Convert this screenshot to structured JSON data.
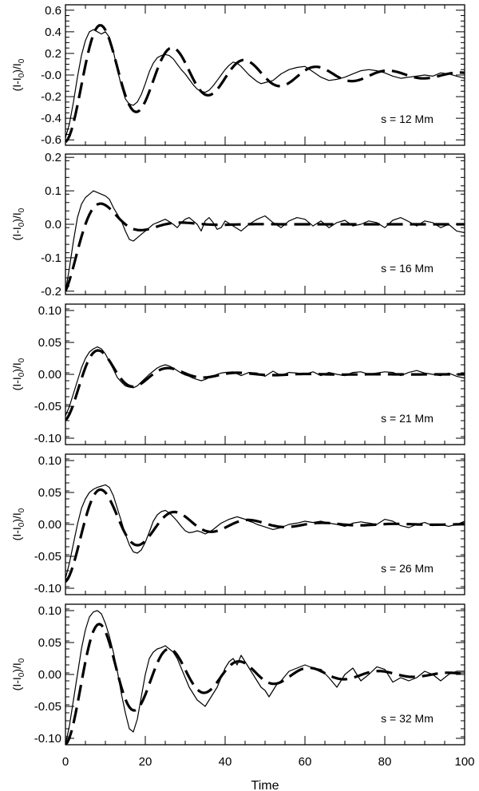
{
  "chart_data": {
    "type": "line",
    "shared_x": {
      "label": "Time",
      "range": [
        0,
        100
      ],
      "ticks": [
        0,
        20,
        40,
        60,
        80,
        100
      ],
      "tick_labels": [
        "0",
        "20",
        "40",
        "60",
        "80",
        "100"
      ]
    },
    "panels": [
      {
        "annotation": "s = 12 Mm",
        "ylabel": {
          "pre": "(I-I",
          "sub1": "0",
          "mid": ")/I",
          "sub2": "0"
        },
        "ylim": [
          -0.65,
          0.65
        ],
        "yticks": [
          -0.6,
          -0.4,
          -0.2,
          0.0,
          0.2,
          0.4,
          0.6
        ],
        "ytick_labels": [
          "-0.6",
          "-0.4",
          "-0.2",
          "-0.0",
          "0.2",
          "0.4",
          "0.6"
        ],
        "series": [
          {
            "style": "solid",
            "x": [
              0,
              1,
              2,
              3,
              4,
              5,
              6,
              7,
              8,
              9,
              10,
              11,
              12,
              13,
              14,
              15,
              16,
              17,
              18,
              19,
              20,
              21,
              22,
              23,
              24,
              25,
              26,
              27,
              28,
              29,
              30,
              31,
              32,
              33,
              34,
              35,
              36,
              37,
              38,
              39,
              40,
              41,
              42,
              43,
              44,
              45,
              46,
              47,
              48,
              49,
              50,
              52,
              54,
              56,
              58,
              60,
              62,
              64,
              66,
              68,
              70,
              72,
              74,
              76,
              78,
              80,
              82,
              84,
              86,
              88,
              90,
              92,
              94,
              96,
              98,
              100
            ],
            "y": [
              -0.58,
              -0.45,
              -0.25,
              -0.02,
              0.18,
              0.32,
              0.4,
              0.42,
              0.4,
              0.38,
              0.4,
              0.35,
              0.22,
              0.05,
              -0.1,
              -0.22,
              -0.27,
              -0.28,
              -0.25,
              -0.18,
              -0.08,
              0.03,
              0.11,
              0.16,
              0.18,
              0.19,
              0.18,
              0.15,
              0.1,
              0.05,
              0.01,
              -0.04,
              -0.09,
              -0.13,
              -0.15,
              -0.16,
              -0.14,
              -0.1,
              -0.05,
              0.0,
              0.05,
              0.09,
              0.12,
              0.11,
              0.08,
              0.04,
              0.0,
              -0.03,
              -0.06,
              -0.08,
              -0.07,
              -0.05,
              0.01,
              0.05,
              0.07,
              0.08,
              0.03,
              -0.02,
              -0.05,
              -0.04,
              -0.02,
              0.01,
              0.04,
              0.05,
              0.04,
              0.02,
              -0.01,
              -0.03,
              -0.02,
              -0.01,
              0.0,
              -0.01,
              0.02,
              0.01,
              -0.01,
              -0.03
            ]
          },
          {
            "style": "dashed",
            "fn": {
              "A": 0.62,
              "t0": 0,
              "tau": 30,
              "P": 18,
              "c": 0
            }
          }
        ]
      },
      {
        "annotation": "s = 16 Mm",
        "ylabel": {
          "pre": "(I-I",
          "sub1": "0",
          "mid": ")/I",
          "sub2": "0"
        },
        "ylim": [
          -0.21,
          0.21
        ],
        "yticks": [
          -0.2,
          -0.1,
          0.0,
          0.1,
          0.2
        ],
        "ytick_labels": [
          "-0.2",
          "-0.1",
          "0.0",
          "0.1",
          "0.2"
        ],
        "series": [
          {
            "style": "solid",
            "x": [
              0,
              1,
              2,
              3,
              4,
              5,
              6,
              7,
              8,
              9,
              10,
              11,
              12,
              13,
              14,
              15,
              16,
              17,
              18,
              19,
              20,
              21,
              22,
              23,
              24,
              25,
              26,
              27,
              28,
              29,
              30,
              31,
              32,
              33,
              34,
              35,
              36,
              37,
              38,
              39,
              40,
              42,
              44,
              46,
              48,
              50,
              52,
              54,
              56,
              58,
              60,
              62,
              64,
              66,
              68,
              70,
              72,
              74,
              76,
              78,
              80,
              82,
              84,
              86,
              88,
              90,
              92,
              94,
              96,
              98,
              100
            ],
            "y": [
              -0.2,
              -0.13,
              -0.05,
              0.02,
              0.06,
              0.08,
              0.09,
              0.1,
              0.095,
              0.09,
              0.085,
              0.075,
              0.05,
              0.03,
              0.01,
              -0.02,
              -0.045,
              -0.05,
              -0.04,
              -0.03,
              -0.02,
              -0.01,
              0.0,
              0.005,
              0.01,
              0.015,
              0.008,
              0.0,
              -0.01,
              0.005,
              0.015,
              0.02,
              0.01,
              0.0,
              -0.02,
              0.01,
              0.02,
              0.005,
              -0.015,
              -0.01,
              0.01,
              -0.005,
              -0.02,
              0.0,
              0.015,
              0.025,
              0.005,
              -0.01,
              0.01,
              0.02,
              0.015,
              -0.005,
              0.01,
              -0.01,
              0.005,
              0.012,
              -0.005,
              0.0,
              0.01,
              0.005,
              -0.01,
              0.012,
              0.02,
              0.008,
              -0.005,
              0.01,
              0.005,
              -0.01,
              0.0,
              -0.02,
              -0.025
            ]
          },
          {
            "style": "dashed",
            "fn": {
              "A": 0.2,
              "t0": 0,
              "tau": 8,
              "P": 20,
              "c": 0
            }
          }
        ]
      },
      {
        "annotation": "s = 21 Mm",
        "ylabel": {
          "pre": "(I-I",
          "sub1": "0",
          "mid": ")/I",
          "sub2": "0"
        },
        "ylim": [
          -0.11,
          0.11
        ],
        "yticks": [
          -0.1,
          -0.05,
          0.0,
          0.05,
          0.1
        ],
        "ytick_labels": [
          "-0.10",
          "-0.05",
          "0.00",
          "0.05",
          "0.10"
        ],
        "series": [
          {
            "style": "solid",
            "x": [
              0,
              1,
              2,
              3,
              4,
              5,
              6,
              7,
              8,
              9,
              10,
              11,
              12,
              13,
              14,
              15,
              16,
              17,
              18,
              19,
              20,
              21,
              22,
              23,
              24,
              25,
              26,
              27,
              28,
              29,
              30,
              31,
              32,
              33,
              34,
              35,
              36,
              37,
              38,
              39,
              40,
              42,
              44,
              46,
              48,
              50,
              52,
              54,
              56,
              58,
              60,
              62,
              64,
              66,
              68,
              70,
              72,
              74,
              76,
              78,
              80,
              82,
              84,
              86,
              88,
              90,
              92,
              94,
              96,
              98,
              100
            ],
            "y": [
              -0.065,
              -0.05,
              -0.03,
              -0.01,
              0.01,
              0.025,
              0.035,
              0.04,
              0.043,
              0.04,
              0.032,
              0.02,
              0.008,
              -0.005,
              -0.012,
              -0.018,
              -0.02,
              -0.021,
              -0.018,
              -0.012,
              -0.006,
              0.0,
              0.005,
              0.01,
              0.013,
              0.015,
              0.013,
              0.01,
              0.006,
              0.002,
              -0.001,
              -0.003,
              -0.006,
              -0.008,
              -0.01,
              -0.008,
              -0.005,
              -0.003,
              0.0,
              0.002,
              0.003,
              0.004,
              -0.002,
              0.003,
              0.002,
              -0.003,
              0.005,
              -0.002,
              0.003,
              0.002,
              0.0,
              0.004,
              -0.002,
              0.003,
              0.0,
              -0.002,
              0.003,
              0.004,
              0.0,
              0.002,
              0.004,
              0.003,
              -0.002,
              0.003,
              0.006,
              0.002,
              0.0,
              -0.002,
              0.002,
              -0.003,
              -0.006
            ]
          },
          {
            "style": "dashed",
            "fn": {
              "A": 0.072,
              "t0": 0,
              "tau": 13,
              "P": 17.5,
              "c": 0
            }
          }
        ]
      },
      {
        "annotation": "s = 26 Mm",
        "ylabel": {
          "pre": "(I-I",
          "sub1": "0",
          "mid": ")/I",
          "sub2": "0"
        },
        "ylim": [
          -0.11,
          0.11
        ],
        "yticks": [
          -0.1,
          -0.05,
          0.0,
          0.05,
          0.1
        ],
        "ytick_labels": [
          "-0.10",
          "-0.05",
          "0.00",
          "0.05",
          "0.10"
        ],
        "series": [
          {
            "style": "solid",
            "x": [
              0,
              1,
              2,
              3,
              4,
              5,
              6,
              7,
              8,
              9,
              10,
              11,
              12,
              13,
              14,
              15,
              16,
              17,
              18,
              19,
              20,
              21,
              22,
              23,
              24,
              25,
              26,
              27,
              28,
              29,
              30,
              31,
              32,
              33,
              34,
              35,
              36,
              37,
              38,
              39,
              40,
              41,
              42,
              43,
              44,
              45,
              46,
              47,
              48,
              49,
              50,
              52,
              54,
              56,
              58,
              60,
              62,
              64,
              66,
              68,
              70,
              72,
              74,
              76,
              78,
              80,
              82,
              84,
              86,
              88,
              90,
              92,
              94,
              96,
              98,
              100
            ],
            "y": [
              -0.085,
              -0.06,
              -0.03,
              0.0,
              0.025,
              0.04,
              0.05,
              0.055,
              0.058,
              0.06,
              0.062,
              0.058,
              0.045,
              0.025,
              0.005,
              -0.015,
              -0.032,
              -0.043,
              -0.045,
              -0.04,
              -0.028,
              -0.012,
              0.005,
              0.015,
              0.02,
              0.022,
              0.018,
              0.012,
              0.005,
              -0.003,
              -0.01,
              -0.013,
              -0.012,
              -0.01,
              -0.012,
              -0.015,
              -0.012,
              -0.008,
              -0.003,
              0.002,
              0.005,
              0.008,
              0.01,
              0.012,
              0.01,
              0.008,
              0.005,
              0.003,
              0.0,
              -0.002,
              -0.004,
              -0.008,
              -0.005,
              0.0,
              0.002,
              0.005,
              0.003,
              0.005,
              0.002,
              0.0,
              -0.003,
              0.002,
              0.004,
              0.002,
              0.0,
              0.008,
              0.005,
              -0.002,
              -0.005,
              0.0,
              0.003,
              -0.002,
              0.0,
              -0.003,
              0.0,
              0.005
            ]
          },
          {
            "style": "dashed",
            "fn": {
              "A": 0.09,
              "t0": 0,
              "tau": 18,
              "P": 18.5,
              "c": 0
            }
          }
        ]
      },
      {
        "annotation": "s = 32 Mm",
        "ylabel": {
          "pre": "(I-I",
          "sub1": "0",
          "mid": ")/I",
          "sub2": "0"
        },
        "ylim": [
          -0.11,
          0.11
        ],
        "yticks": [
          -0.1,
          -0.05,
          0.0,
          0.05,
          0.1
        ],
        "ytick_labels": [
          "-0.10",
          "-0.05",
          "0.00",
          "0.05",
          "0.10"
        ],
        "series": [
          {
            "style": "solid",
            "x": [
              0,
              1,
              2,
              3,
              4,
              5,
              6,
              7,
              8,
              9,
              10,
              11,
              12,
              13,
              14,
              15,
              16,
              17,
              18,
              19,
              20,
              21,
              22,
              23,
              24,
              25,
              26,
              27,
              28,
              29,
              30,
              31,
              32,
              33,
              34,
              35,
              36,
              37,
              38,
              39,
              40,
              41,
              42,
              43,
              44,
              45,
              46,
              47,
              48,
              49,
              50,
              51,
              52,
              53,
              54,
              56,
              58,
              60,
              62,
              64,
              66,
              68,
              70,
              72,
              74,
              76,
              78,
              80,
              82,
              84,
              86,
              88,
              90,
              92,
              94,
              96,
              98,
              100
            ],
            "y": [
              -0.11,
              -0.08,
              -0.04,
              0.0,
              0.04,
              0.07,
              0.09,
              0.098,
              0.1,
              0.095,
              0.08,
              0.06,
              0.035,
              0.005,
              -0.03,
              -0.06,
              -0.085,
              -0.09,
              -0.07,
              -0.035,
              0.0,
              0.025,
              0.035,
              0.04,
              0.042,
              0.045,
              0.04,
              0.035,
              0.025,
              0.01,
              -0.005,
              -0.02,
              -0.03,
              -0.04,
              -0.045,
              -0.05,
              -0.04,
              -0.03,
              -0.02,
              -0.005,
              0.01,
              0.02,
              0.025,
              0.015,
              0.03,
              0.02,
              0.01,
              0.0,
              -0.01,
              -0.02,
              -0.025,
              -0.035,
              -0.025,
              -0.015,
              -0.01,
              0.005,
              0.01,
              0.015,
              0.01,
              0.008,
              -0.005,
              -0.02,
              0.0,
              0.01,
              -0.01,
              0.0,
              0.012,
              0.008,
              -0.012,
              -0.005,
              -0.01,
              -0.005,
              0.005,
              0.0,
              -0.01,
              0.0,
              0.005,
              0.005
            ]
          },
          {
            "style": "dashed",
            "fn": {
              "A": 0.11,
              "t0": 0,
              "tau": 26,
              "P": 17.5,
              "c": 0
            }
          }
        ]
      }
    ]
  }
}
